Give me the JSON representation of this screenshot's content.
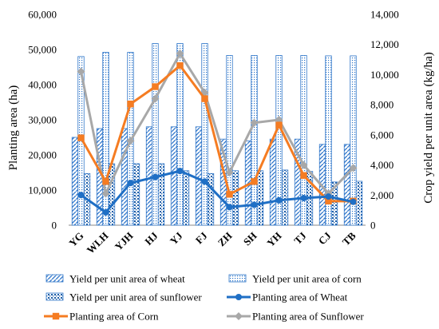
{
  "chart_data": {
    "type": "bar+line",
    "categories": [
      "YG",
      "WLH",
      "YJH",
      "HJ",
      "YJ",
      "FJ",
      "ZH",
      "SH",
      "YH",
      "TJ",
      "CJ",
      "TB"
    ],
    "left_axis": {
      "label": "Planting area  (ha)",
      "ylim": [
        0,
        60000
      ],
      "ticks": [
        "0",
        "10,000",
        "20,000",
        "30,000",
        "40,000",
        "50,000",
        "60,000"
      ],
      "tick_values": [
        0,
        10000,
        20000,
        30000,
        40000,
        50000,
        60000
      ]
    },
    "right_axis": {
      "label": "Crop yield per unit area  (kg/ha)",
      "ylim": [
        0,
        14000
      ],
      "ticks": [
        "0",
        "2,000",
        "4,000",
        "6,000",
        "8,000",
        "10,000",
        "12,000",
        "14,000"
      ],
      "tick_values": [
        0,
        2000,
        4000,
        6000,
        8000,
        10000,
        12000,
        14000
      ]
    },
    "bar_series": [
      {
        "name": "Yield per unit area of wheat",
        "axis": "left",
        "pattern": "wheat",
        "values": [
          25000,
          27500,
          27500,
          28000,
          28000,
          28000,
          24500,
          24000,
          24500,
          24500,
          23000,
          23000
        ]
      },
      {
        "name": "Yield per unit area of corn",
        "axis": "left",
        "pattern": "corn",
        "values": [
          48000,
          49200,
          49200,
          51700,
          51700,
          51700,
          48300,
          48300,
          48300,
          48300,
          48200,
          48200
        ]
      },
      {
        "name": "Yield per unit area of sunflower",
        "axis": "left",
        "pattern": "sunflower",
        "values": [
          14700,
          17500,
          17500,
          17500,
          15500,
          14700,
          15500,
          15500,
          15700,
          15300,
          12300,
          12500
        ]
      }
    ],
    "line_series": [
      {
        "name": "Planting area of Wheat",
        "axis": "right",
        "color": "#1f6fc5",
        "marker": "circle",
        "values": [
          2000,
          850,
          2800,
          3200,
          3600,
          2900,
          1200,
          1350,
          1650,
          1800,
          1900,
          1550
        ]
      },
      {
        "name": "Planting area of Corn",
        "axis": "right",
        "color": "#f57c22",
        "marker": "square",
        "values": [
          5800,
          2900,
          8050,
          9200,
          10600,
          8400,
          2050,
          2900,
          6650,
          3300,
          1600,
          1600
        ]
      },
      {
        "name": "Planting area of Sunflower",
        "axis": "right",
        "color": "#a8a8a8",
        "marker": "diamond",
        "values": [
          10200,
          2100,
          5600,
          8400,
          11400,
          8800,
          3500,
          6800,
          7000,
          4000,
          2100,
          3800
        ]
      }
    ],
    "grid": false,
    "legend_position": "bottom"
  }
}
